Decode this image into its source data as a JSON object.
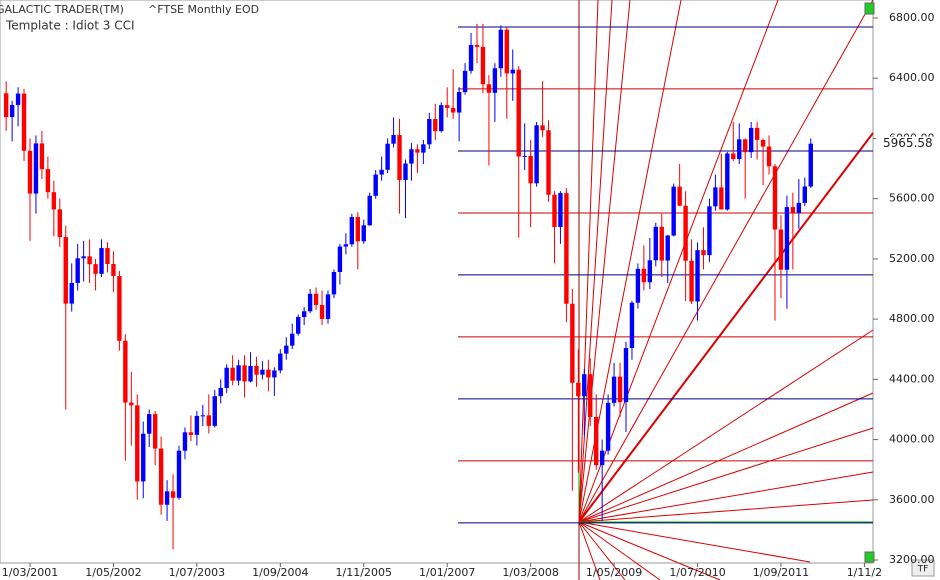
{
  "chart_data": {
    "type": "candlestick",
    "app": "GALACTIC TRADER(TM)",
    "title": "^FTSE Monthly EOD",
    "template": "Template : Idiot 3 CCI",
    "up_color": "#0000ff",
    "down_color": "#ff0000",
    "ylim": [
      3200,
      6800
    ],
    "yticks": [
      {
        "value": 3200,
        "label": "3200.00"
      },
      {
        "value": 3600,
        "label": "3600.00"
      },
      {
        "value": 4000,
        "label": "4000.00"
      },
      {
        "value": 4400,
        "label": "4400.00"
      },
      {
        "value": 4800,
        "label": "4800.00"
      },
      {
        "value": 5200,
        "label": "5200.00"
      },
      {
        "value": 5600,
        "label": "5600.00"
      },
      {
        "value": 6000,
        "label": "6000.00"
      },
      {
        "value": 6400,
        "label": "6400.00"
      },
      {
        "value": 6800,
        "label": "6800.00"
      }
    ],
    "levels": [
      {
        "value": 6740,
        "color": "#000080"
      },
      {
        "value": 6329,
        "color": "#cc0000"
      },
      {
        "value": 5917,
        "color": "#000080"
      },
      {
        "value": 5505,
        "color": "#cc0000"
      },
      {
        "value": 5094,
        "color": "#000080"
      },
      {
        "value": 4682,
        "color": "#cc0000"
      },
      {
        "value": 4270,
        "color": "#000080"
      },
      {
        "value": 3858,
        "color": "#cc0000"
      },
      {
        "value": 3447,
        "color": "#000080"
      }
    ],
    "categories": [
      null,
      null,
      null,
      null,
      "1/03/2001",
      null,
      null,
      null,
      null,
      null,
      null,
      null,
      null,
      null,
      null,
      null,
      null,
      null,
      "1/05/2002",
      null,
      null,
      null,
      null,
      null,
      null,
      null,
      null,
      null,
      null,
      null,
      null,
      null,
      "1/07/2003",
      null,
      null,
      null,
      null,
      null,
      null,
      null,
      null,
      null,
      null,
      null,
      null,
      null,
      "1/09/2004",
      null,
      null,
      null,
      null,
      null,
      null,
      null,
      null,
      null,
      null,
      null,
      null,
      null,
      "1/11/2005",
      null,
      null,
      null,
      null,
      null,
      null,
      null,
      null,
      null,
      null,
      null,
      null,
      null,
      "1/01/2007",
      null,
      null,
      null,
      null,
      null,
      null,
      null,
      null,
      null,
      null,
      null,
      null,
      null,
      "1/03/2008",
      null,
      null,
      null,
      null,
      null,
      null,
      null,
      null,
      null,
      null,
      null,
      null,
      null,
      "1/05/2009",
      null,
      null,
      null,
      null,
      null,
      null,
      null,
      null,
      null,
      null,
      null,
      null,
      null,
      "1/07/2010",
      null,
      null,
      null,
      null,
      null,
      null,
      null,
      null,
      null,
      null,
      null,
      null,
      null,
      "1/09/2011",
      null,
      null,
      null,
      null,
      null,
      null,
      null,
      null,
      null,
      null,
      null,
      null,
      null,
      "1/11/2",
      null
    ],
    "candles": [
      [
        6300,
        6380,
        6050,
        6142
      ],
      [
        6142,
        6250,
        5980,
        6222
      ],
      [
        6222,
        6340,
        6080,
        6298
      ],
      [
        6298,
        6330,
        5850,
        5918
      ],
      [
        5918,
        6000,
        5320,
        5634
      ],
      [
        5634,
        6020,
        5500,
        5967
      ],
      [
        5967,
        6050,
        5730,
        5796
      ],
      [
        5796,
        5880,
        5600,
        5643
      ],
      [
        5643,
        5720,
        5350,
        5529
      ],
      [
        5529,
        5600,
        5280,
        5345
      ],
      [
        5345,
        5420,
        4200,
        4903
      ],
      [
        4903,
        5170,
        4850,
        5040
      ],
      [
        5040,
        5300,
        4990,
        5204
      ],
      [
        5204,
        5320,
        5050,
        5217
      ],
      [
        5217,
        5330,
        5040,
        5165
      ],
      [
        5165,
        5200,
        4990,
        5101
      ],
      [
        5101,
        5330,
        5080,
        5272
      ],
      [
        5272,
        5310,
        5110,
        5166
      ],
      [
        5166,
        5250,
        4980,
        5086
      ],
      [
        5086,
        5120,
        4590,
        4656
      ],
      [
        4656,
        4700,
        3860,
        4246
      ],
      [
        4246,
        4450,
        3960,
        4227
      ],
      [
        4227,
        4300,
        3600,
        3722
      ],
      [
        3722,
        4120,
        3610,
        4039
      ],
      [
        4039,
        4200,
        3950,
        4169
      ],
      [
        4169,
        4190,
        3830,
        3940
      ],
      [
        3940,
        4020,
        3500,
        3567
      ],
      [
        3567,
        3730,
        3460,
        3656
      ],
      [
        3656,
        3770,
        3270,
        3613
      ],
      [
        3613,
        3960,
        3600,
        3926
      ],
      [
        3926,
        4080,
        3870,
        4048
      ],
      [
        4048,
        4160,
        3990,
        4031
      ],
      [
        4031,
        4190,
        3960,
        4157
      ],
      [
        4157,
        4230,
        4090,
        4161
      ],
      [
        4161,
        4300,
        4040,
        4091
      ],
      [
        4091,
        4330,
        4080,
        4288
      ],
      [
        4288,
        4400,
        4240,
        4343
      ],
      [
        4343,
        4500,
        4310,
        4477
      ],
      [
        4477,
        4560,
        4360,
        4391
      ],
      [
        4391,
        4530,
        4360,
        4493
      ],
      [
        4493,
        4560,
        4280,
        4386
      ],
      [
        4386,
        4580,
        4380,
        4489
      ],
      [
        4489,
        4550,
        4350,
        4431
      ],
      [
        4431,
        4520,
        4400,
        4464
      ],
      [
        4464,
        4530,
        4320,
        4413
      ],
      [
        4413,
        4480,
        4290,
        4459
      ],
      [
        4459,
        4600,
        4440,
        4571
      ],
      [
        4571,
        4680,
        4530,
        4624
      ],
      [
        4624,
        4770,
        4600,
        4703
      ],
      [
        4703,
        4830,
        4690,
        4814
      ],
      [
        4814,
        4880,
        4760,
        4852
      ],
      [
        4852,
        5000,
        4840,
        4968
      ],
      [
        4968,
        5010,
        4860,
        4894
      ],
      [
        4894,
        4990,
        4760,
        4801
      ],
      [
        4801,
        4990,
        4770,
        4964
      ],
      [
        4964,
        5130,
        4940,
        5113
      ],
      [
        5113,
        5300,
        5030,
        5282
      ],
      [
        5282,
        5370,
        5230,
        5297
      ],
      [
        5297,
        5500,
        5280,
        5478
      ],
      [
        5478,
        5510,
        5130,
        5317
      ],
      [
        5317,
        5460,
        5300,
        5423
      ],
      [
        5423,
        5640,
        5420,
        5619
      ],
      [
        5619,
        5790,
        5600,
        5760
      ],
      [
        5760,
        5880,
        5720,
        5792
      ],
      [
        5792,
        6000,
        5770,
        5965
      ],
      [
        5965,
        6140,
        5940,
        6023
      ],
      [
        6023,
        6130,
        5500,
        5724
      ],
      [
        5724,
        5860,
        5470,
        5833
      ],
      [
        5833,
        5970,
        5720,
        5928
      ],
      [
        5928,
        5960,
        5770,
        5906
      ],
      [
        5906,
        5990,
        5830,
        5961
      ],
      [
        5961,
        6170,
        5930,
        6129
      ],
      [
        6129,
        6230,
        5990,
        6049
      ],
      [
        6049,
        6240,
        6040,
        6221
      ],
      [
        6221,
        6340,
        6140,
        6203
      ],
      [
        6203,
        6460,
        6130,
        6172
      ],
      [
        6172,
        6340,
        5980,
        6308
      ],
      [
        6308,
        6500,
        6290,
        6449
      ],
      [
        6449,
        6700,
        6430,
        6621
      ],
      [
        6621,
        6760,
        6500,
        6608
      ],
      [
        6608,
        6760,
        6300,
        6360
      ],
      [
        6360,
        6420,
        5820,
        6303
      ],
      [
        6303,
        6500,
        6110,
        6466
      ],
      [
        6466,
        6750,
        6410,
        6722
      ],
      [
        6722,
        6740,
        6130,
        6432
      ],
      [
        6432,
        6590,
        6250,
        6457
      ],
      [
        6457,
        6480,
        5340,
        5880
      ],
      [
        5880,
        6100,
        5790,
        5884
      ],
      [
        5884,
        5990,
        5410,
        5702
      ],
      [
        5702,
        6110,
        5680,
        6087
      ],
      [
        6087,
        6380,
        6010,
        6054
      ],
      [
        6054,
        6120,
        5580,
        5626
      ],
      [
        5626,
        5650,
        5170,
        5412
      ],
      [
        5412,
        5650,
        5300,
        5637
      ],
      [
        5637,
        5670,
        4780,
        4902
      ],
      [
        4902,
        5000,
        3660,
        4377
      ],
      [
        4377,
        4600,
        3780,
        4288
      ],
      [
        4288,
        4470,
        4030,
        4434
      ],
      [
        4434,
        4540,
        4090,
        4150
      ],
      [
        4150,
        4300,
        3800,
        3830
      ],
      [
        3830,
        4000,
        3460,
        3926
      ],
      [
        3926,
        4300,
        3900,
        4244
      ],
      [
        4244,
        4510,
        4220,
        4418
      ],
      [
        4418,
        4510,
        4150,
        4249
      ],
      [
        4249,
        4650,
        4050,
        4608
      ],
      [
        4608,
        4920,
        4530,
        4909
      ],
      [
        4909,
        5170,
        4870,
        5134
      ],
      [
        5134,
        5290,
        4990,
        5045
      ],
      [
        5045,
        5340,
        5000,
        5191
      ],
      [
        5191,
        5440,
        5150,
        5413
      ],
      [
        5413,
        5500,
        5080,
        5189
      ],
      [
        5189,
        5360,
        5040,
        5355
      ],
      [
        5355,
        5700,
        5350,
        5680
      ],
      [
        5680,
        5830,
        5550,
        5553
      ],
      [
        5553,
        5650,
        4920,
        5188
      ],
      [
        5188,
        5330,
        4900,
        4917
      ],
      [
        4917,
        5310,
        4790,
        5258
      ],
      [
        5258,
        5410,
        5130,
        5225
      ],
      [
        5225,
        5600,
        5180,
        5549
      ],
      [
        5549,
        5760,
        5520,
        5675
      ],
      [
        5675,
        5900,
        5570,
        5528
      ],
      [
        5528,
        5910,
        5520,
        5900
      ],
      [
        5900,
        6110,
        5850,
        5863
      ],
      [
        5863,
        6100,
        5830,
        5994
      ],
      [
        5994,
        6000,
        5600,
        5909
      ],
      [
        5909,
        6110,
        5870,
        6070
      ],
      [
        6070,
        6110,
        5860,
        5990
      ],
      [
        5990,
        6000,
        5690,
        5946
      ],
      [
        5946,
        6020,
        5760,
        5815
      ],
      [
        5815,
        5830,
        4790,
        5395
      ],
      [
        5395,
        5490,
        4940,
        5128
      ],
      [
        5128,
        5620,
        4870,
        5544
      ],
      [
        5544,
        5640,
        5130,
        5505
      ],
      [
        5505,
        5730,
        5400,
        5572
      ],
      [
        5572,
        5740,
        5550,
        5681
      ],
      [
        5681,
        6000,
        5670,
        5965.58
      ],
      null,
      null,
      null,
      null,
      null,
      null,
      null,
      null,
      null,
      null
    ]
  },
  "toolbar": {
    "button": "TF"
  }
}
